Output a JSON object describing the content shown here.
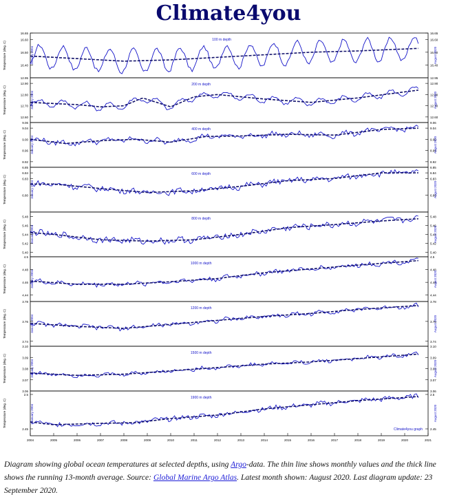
{
  "title": "Climate4you",
  "caption": {
    "part1": "Diagram showing global ocean temperatures at selected depths, using ",
    "link_argo": "Argo",
    "part2": "-data. The thin line shows monthly values and the thick line shows the running 13-month average. Source: ",
    "link_atlas": "Global Marine Argo Atlas",
    "part3": ". Latest month shown: August 2020. Last diagram update: 23 September 2020."
  },
  "colors": {
    "line": "#1212c8",
    "title": "#0a0a6e"
  },
  "chart_data": {
    "type": "line",
    "x_range": [
      2004,
      2021
    ],
    "x_ticks": [
      "2004",
      "2005",
      "2006",
      "2007",
      "2008",
      "2009",
      "2010",
      "2011",
      "2012",
      "2013",
      "2014",
      "2015",
      "2016",
      "2017",
      "2018",
      "2019",
      "2020",
      "2021"
    ],
    "ylabel": "Temperature (deg. C)",
    "start_label": "January 2004",
    "end_label": "August 2020",
    "credit": "Climate4you graph",
    "panels": [
      {
        "label": "100 m depth",
        "ylim": [
          16.3,
          16.65
        ],
        "ticks": [
          "16.40",
          "16.50",
          "16.60",
          "16.65"
        ],
        "trend": [
          [
            2004,
            16.47
          ],
          [
            2006,
            16.45
          ],
          [
            2008,
            16.43
          ],
          [
            2010,
            16.44
          ],
          [
            2012,
            16.46
          ],
          [
            2014,
            16.48
          ],
          [
            2016,
            16.5
          ],
          [
            2018,
            16.51
          ],
          [
            2020.6,
            16.53
          ]
        ],
        "amp": 0.09,
        "noise": 0.015
      },
      {
        "label": "200 m depth",
        "ylim": [
          12.55,
          12.95
        ],
        "ticks": [
          "12.60",
          "12.70",
          "12.80",
          "12.90",
          "12.95"
        ],
        "trend": [
          [
            2004,
            12.73
          ],
          [
            2006,
            12.71
          ],
          [
            2007,
            12.69
          ],
          [
            2008,
            12.7
          ],
          [
            2008.8,
            12.77
          ],
          [
            2010,
            12.69
          ],
          [
            2011,
            12.78
          ],
          [
            2012,
            12.8
          ],
          [
            2014,
            12.76
          ],
          [
            2016,
            12.73
          ],
          [
            2018,
            12.77
          ],
          [
            2020.6,
            12.84
          ]
        ],
        "amp": 0.03,
        "noise": 0.012
      },
      {
        "label": "400 m depth",
        "ylim": [
          8.9,
          9.06
        ],
        "ticks": [
          "8.92",
          "8.96",
          "9.00",
          "9.04",
          "9.06"
        ],
        "trend": [
          [
            2004,
            9.0
          ],
          [
            2005.5,
            8.985
          ],
          [
            2007,
            8.995
          ],
          [
            2008.5,
            9.0
          ],
          [
            2010,
            8.99
          ],
          [
            2011.5,
            9.01
          ],
          [
            2013,
            9.012
          ],
          [
            2015,
            9.018
          ],
          [
            2017,
            9.015
          ],
          [
            2019,
            9.035
          ],
          [
            2020.6,
            9.04
          ]
        ],
        "amp": 0.006,
        "noise": 0.008
      },
      {
        "label": "600 m depth",
        "ylim": [
          6.77,
          6.85
        ],
        "ticks": [
          "6.80",
          "6.83",
          "6.84",
          "6.85"
        ],
        "trend": [
          [
            2004,
            6.82
          ],
          [
            2005,
            6.82
          ],
          [
            2007,
            6.812
          ],
          [
            2009,
            6.805
          ],
          [
            2011,
            6.808
          ],
          [
            2013,
            6.816
          ],
          [
            2015,
            6.826
          ],
          [
            2017,
            6.83
          ],
          [
            2019,
            6.84
          ],
          [
            2020.6,
            6.84
          ]
        ],
        "amp": 0.002,
        "noise": 0.005
      },
      {
        "label": "800 m depth",
        "ylim": [
          5.39,
          5.49
        ],
        "ticks": [
          "5.40",
          "5.42",
          "5.44",
          "5.46",
          "5.48"
        ],
        "trend": [
          [
            2004,
            5.444
          ],
          [
            2005,
            5.44
          ],
          [
            2007,
            5.428
          ],
          [
            2009,
            5.425
          ],
          [
            2011,
            5.428
          ],
          [
            2013,
            5.44
          ],
          [
            2015,
            5.455
          ],
          [
            2017,
            5.462
          ],
          [
            2019,
            5.47
          ],
          [
            2020.6,
            5.475
          ]
        ],
        "amp": 0.002,
        "noise": 0.007
      },
      {
        "label": "1000 m depth",
        "ylim": [
          4.43,
          4.5
        ],
        "ticks": [
          "4.44",
          "4.46",
          "4.48",
          "4.5"
        ],
        "trend": [
          [
            2004,
            4.462
          ],
          [
            2006,
            4.457
          ],
          [
            2008,
            4.457
          ],
          [
            2010,
            4.461
          ],
          [
            2012,
            4.466
          ],
          [
            2014,
            4.475
          ],
          [
            2016,
            4.481
          ],
          [
            2018,
            4.487
          ],
          [
            2020.6,
            4.494
          ]
        ],
        "amp": 0.0015,
        "noise": 0.0035
      },
      {
        "label": "1200 m depth",
        "ylim": [
          3.735,
          3.78
        ],
        "ticks": [
          "3.74",
          "3.76",
          "3.78"
        ],
        "trend": [
          [
            2004,
            3.758
          ],
          [
            2006,
            3.755
          ],
          [
            2008,
            3.753
          ],
          [
            2010,
            3.757
          ],
          [
            2012,
            3.761
          ],
          [
            2014,
            3.765
          ],
          [
            2016,
            3.768
          ],
          [
            2018,
            3.772
          ],
          [
            2020.6,
            3.776
          ]
        ],
        "amp": 0.001,
        "noise": 0.002
      },
      {
        "label": "1500 m depth",
        "ylim": [
          3.06,
          3.1
        ],
        "ticks": [
          "3.06",
          "3.07",
          "3.08",
          "3.09",
          "3.10"
        ],
        "trend": [
          [
            2004,
            3.076
          ],
          [
            2006,
            3.074
          ],
          [
            2008,
            3.075
          ],
          [
            2010,
            3.078
          ],
          [
            2012,
            3.081
          ],
          [
            2014,
            3.084
          ],
          [
            2016,
            3.086
          ],
          [
            2018,
            3.089
          ],
          [
            2020.6,
            3.093
          ]
        ],
        "amp": 0.0008,
        "noise": 0.0015
      },
      {
        "label": "1900 m depth",
        "ylim": [
          2.44,
          2.505
        ],
        "ticks": [
          "2.45",
          "2.5"
        ],
        "trend": [
          [
            2004,
            2.46
          ],
          [
            2005,
            2.456
          ],
          [
            2007,
            2.458
          ],
          [
            2008.5,
            2.459
          ],
          [
            2010,
            2.465
          ],
          [
            2012,
            2.47
          ],
          [
            2014,
            2.479
          ],
          [
            2016,
            2.485
          ],
          [
            2018,
            2.491
          ],
          [
            2020.6,
            2.497
          ]
        ],
        "amp": 0.001,
        "noise": 0.0035
      }
    ]
  }
}
